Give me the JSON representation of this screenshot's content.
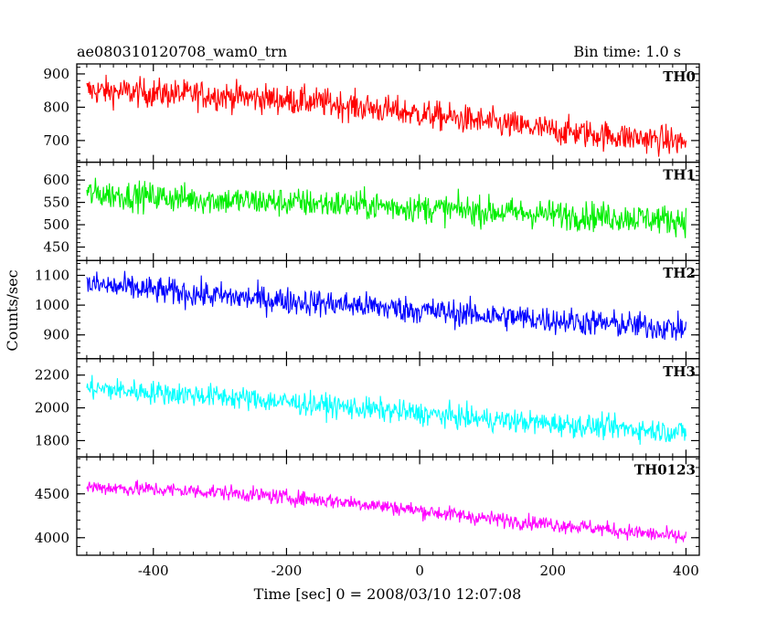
{
  "chart_data": {
    "type": "line",
    "title": "ae080310120708_wam0_trn",
    "subtitle": "Bin time: 1.0 s",
    "xlabel": "Time [sec] 0 = 2008/03/10 12:07:08",
    "ylabel": "Counts/sec",
    "xlim": [
      -515,
      420
    ],
    "xticks": [
      -400,
      -200,
      0,
      200,
      400
    ],
    "colors": {
      "TH0": "#ff0000",
      "TH1": "#00ee00",
      "TH2": "#0000ff",
      "TH3": "#00ffff",
      "TH0123": "#ff00ff"
    },
    "panels": [
      {
        "label": "TH0",
        "color": "#ff0000",
        "ylim": [
          635,
          930
        ],
        "yticks": [
          700,
          800,
          900
        ],
        "trend": [
          [
            -500,
            850
          ],
          [
            -300,
            835
          ],
          [
            -150,
            815
          ],
          [
            0,
            780
          ],
          [
            200,
            730
          ],
          [
            400,
            695
          ]
        ],
        "noise": 40,
        "x": [
          -500,
          400
        ]
      },
      {
        "label": "TH1",
        "color": "#00ee00",
        "ylim": [
          420,
          640
        ],
        "yticks": [
          450,
          500,
          550,
          600
        ],
        "trend": [
          [
            -500,
            570
          ],
          [
            -300,
            555
          ],
          [
            -100,
            545
          ],
          [
            100,
            530
          ],
          [
            400,
            510
          ]
        ],
        "noise": 30,
        "x": [
          -500,
          400
        ]
      },
      {
        "label": "TH2",
        "color": "#0000ff",
        "ylim": [
          820,
          1150
        ],
        "yticks": [
          900,
          1000,
          1100
        ],
        "trend": [
          [
            -500,
            1070
          ],
          [
            -300,
            1030
          ],
          [
            -100,
            1000
          ],
          [
            100,
            965
          ],
          [
            400,
            920
          ]
        ],
        "noise": 42,
        "x": [
          -500,
          400
        ]
      },
      {
        "label": "TH3",
        "color": "#00ffff",
        "ylim": [
          1700,
          2300
        ],
        "yticks": [
          1800,
          2000,
          2200
        ],
        "trend": [
          [
            -500,
            2120
          ],
          [
            -300,
            2070
          ],
          [
            -100,
            2000
          ],
          [
            100,
            1930
          ],
          [
            400,
            1850
          ]
        ],
        "noise": 65,
        "x": [
          -500,
          400
        ]
      },
      {
        "label": "TH0123",
        "color": "#ff00ff",
        "ylim": [
          3800,
          4920
        ],
        "yticks": [
          4000,
          4500
        ],
        "trend": [
          [
            -500,
            4580
          ],
          [
            -300,
            4520
          ],
          [
            -100,
            4400
          ],
          [
            100,
            4220
          ],
          [
            250,
            4120
          ],
          [
            400,
            4000
          ]
        ],
        "noise": 80,
        "x": [
          -500,
          400
        ]
      }
    ]
  }
}
